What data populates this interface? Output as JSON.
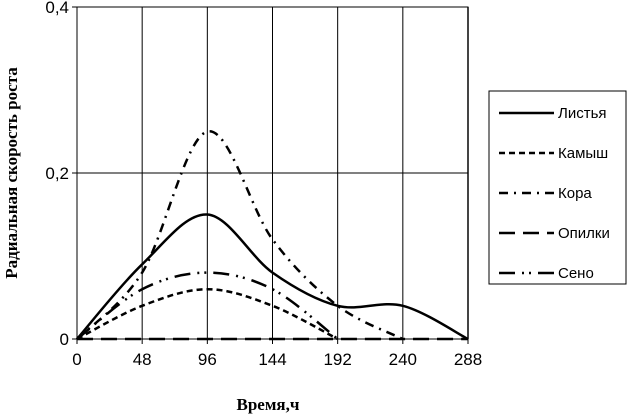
{
  "chart_data": {
    "type": "line",
    "title": "",
    "xlabel": "Время,ч",
    "ylabel": "Радиальная скорость роста",
    "xlim": [
      0,
      288
    ],
    "ylim": [
      0,
      0.4
    ],
    "xticks": [
      "0",
      "48",
      "96",
      "144",
      "192",
      "240",
      "288"
    ],
    "yticks": [
      "0",
      "0,2",
      "0,4"
    ],
    "grid": true,
    "legend_position": "right",
    "series": [
      {
        "name": "Листья",
        "style": "solid",
        "x": [
          0,
          48,
          96,
          144,
          192,
          240,
          288
        ],
        "y": [
          0,
          0.09,
          0.15,
          0.08,
          0.04,
          0.04,
          0
        ]
      },
      {
        "name": "Камыш",
        "style": "dash",
        "x": [
          0,
          48,
          96,
          144,
          192
        ],
        "y": [
          0,
          0.04,
          0.06,
          0.04,
          0
        ]
      },
      {
        "name": "Кора",
        "style": "dashdot",
        "x": [
          0,
          48,
          96,
          144,
          192,
          240
        ],
        "y": [
          0,
          0.08,
          0.25,
          0.12,
          0.04,
          0
        ]
      },
      {
        "name": "Опилки",
        "style": "longdash",
        "x": [
          0,
          96,
          192,
          288
        ],
        "y": [
          0,
          0,
          0,
          0
        ]
      },
      {
        "name": "Сено",
        "style": "longdashdotdot",
        "x": [
          0,
          48,
          96,
          144,
          192
        ],
        "y": [
          0,
          0.06,
          0.08,
          0.06,
          0
        ]
      }
    ]
  }
}
